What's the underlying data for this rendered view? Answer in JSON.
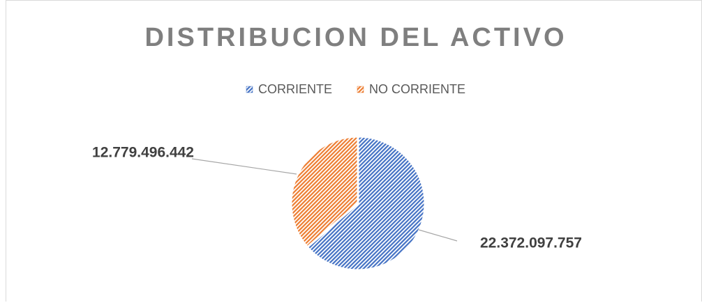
{
  "chart_data": {
    "type": "pie",
    "title": "DISTRIBUCION DEL ACTIVO",
    "categories": [
      "CORRIENTE",
      "NO CORRIENTE"
    ],
    "values": [
      22372097757,
      12779496442
    ],
    "value_labels": [
      "22.372.097.757",
      "12.779.496.442"
    ],
    "colors": [
      "#4472c4",
      "#ed7d31"
    ],
    "legend": "top"
  }
}
